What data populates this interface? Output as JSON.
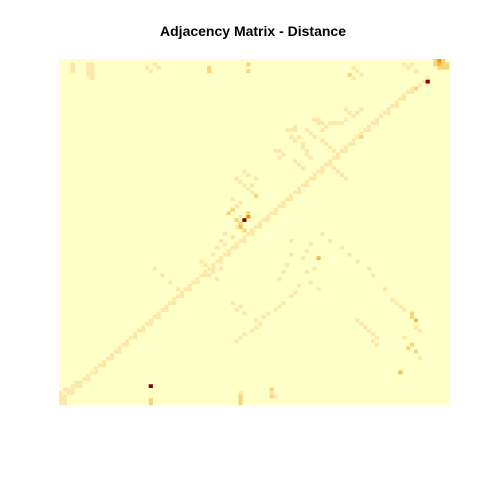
{
  "chart_data": {
    "type": "heatmap",
    "title": "Adjacency Matrix - Distance",
    "xlabel": "",
    "ylabel": "",
    "n": 100,
    "axes_shown": false,
    "grid": false,
    "legend": "none",
    "colors": {
      "background": "#FFFFC8",
      "scale": [
        "#FFFFC8",
        "#FCE8A8",
        "#F9D57A",
        "#F3BE45",
        "#E89A10",
        "#C85A00",
        "#8B0000"
      ]
    },
    "value_range": [
      0,
      6
    ],
    "cells": [
      [
        0,
        96,
        2
      ],
      [
        0,
        97,
        4
      ],
      [
        0,
        98,
        2
      ],
      [
        1,
        96,
        2
      ],
      [
        1,
        97,
        3
      ],
      [
        1,
        98,
        2
      ],
      [
        1,
        99,
        2
      ],
      [
        2,
        97,
        2
      ],
      [
        2,
        98,
        2
      ],
      [
        2,
        99,
        2
      ],
      [
        2,
        38,
        2
      ],
      [
        3,
        38,
        2
      ],
      [
        3,
        48,
        2
      ],
      [
        1,
        48,
        2
      ],
      [
        4,
        74,
        2
      ],
      [
        5,
        94,
        1
      ],
      [
        6,
        93,
        1
      ],
      [
        7,
        92,
        1
      ],
      [
        8,
        91,
        2
      ],
      [
        6,
        94,
        6
      ],
      [
        8,
        90,
        1
      ],
      [
        9,
        89,
        1
      ],
      [
        9,
        90,
        1
      ],
      [
        10,
        88,
        1
      ],
      [
        11,
        87,
        1
      ],
      [
        11,
        88,
        1
      ],
      [
        12,
        86,
        1
      ],
      [
        13,
        85,
        1
      ],
      [
        13,
        86,
        1
      ],
      [
        14,
        84,
        1
      ],
      [
        15,
        83,
        1
      ],
      [
        15,
        84,
        1
      ],
      [
        16,
        82,
        1
      ],
      [
        17,
        81,
        1
      ],
      [
        18,
        80,
        1
      ],
      [
        18,
        81,
        1
      ],
      [
        19,
        79,
        1
      ],
      [
        20,
        78,
        1
      ],
      [
        20,
        79,
        1
      ],
      [
        21,
        77,
        1
      ],
      [
        22,
        76,
        1
      ],
      [
        22,
        77,
        2
      ],
      [
        23,
        75,
        1
      ],
      [
        24,
        74,
        1
      ],
      [
        24,
        75,
        1
      ],
      [
        25,
        73,
        1
      ],
      [
        26,
        72,
        1
      ],
      [
        26,
        73,
        1
      ],
      [
        27,
        71,
        1
      ],
      [
        28,
        70,
        1
      ],
      [
        28,
        71,
        1
      ],
      [
        29,
        69,
        1
      ],
      [
        30,
        68,
        1
      ],
      [
        30,
        69,
        1
      ],
      [
        31,
        67,
        1
      ],
      [
        32,
        66,
        1
      ],
      [
        32,
        67,
        1
      ],
      [
        33,
        65,
        1
      ],
      [
        34,
        64,
        1
      ],
      [
        34,
        65,
        1
      ],
      [
        35,
        63,
        1
      ],
      [
        36,
        62,
        1
      ],
      [
        36,
        63,
        1
      ],
      [
        37,
        61,
        1
      ],
      [
        38,
        60,
        1
      ],
      [
        38,
        61,
        1
      ],
      [
        39,
        59,
        1
      ],
      [
        40,
        58,
        1
      ],
      [
        40,
        59,
        1
      ],
      [
        41,
        57,
        1
      ],
      [
        42,
        56,
        1
      ],
      [
        42,
        57,
        1
      ],
      [
        43,
        55,
        1
      ],
      [
        44,
        54,
        1
      ],
      [
        44,
        55,
        1
      ],
      [
        45,
        53,
        1
      ],
      [
        46,
        52,
        1
      ],
      [
        46,
        53,
        1
      ],
      [
        47,
        51,
        1
      ],
      [
        48,
        50,
        1
      ],
      [
        48,
        51,
        1
      ],
      [
        49,
        49,
        1
      ],
      [
        50,
        48,
        1
      ],
      [
        50,
        49,
        1
      ],
      [
        51,
        47,
        1
      ],
      [
        52,
        46,
        1
      ],
      [
        52,
        47,
        1
      ],
      [
        53,
        45,
        1
      ],
      [
        54,
        44,
        1
      ],
      [
        54,
        45,
        1
      ],
      [
        55,
        43,
        1
      ],
      [
        56,
        42,
        1
      ],
      [
        56,
        43,
        1
      ],
      [
        57,
        41,
        1
      ],
      [
        58,
        40,
        1
      ],
      [
        58,
        41,
        1
      ],
      [
        59,
        39,
        1
      ],
      [
        60,
        38,
        1
      ],
      [
        60,
        39,
        1
      ],
      [
        61,
        37,
        1
      ],
      [
        62,
        36,
        1
      ],
      [
        62,
        37,
        1
      ],
      [
        63,
        35,
        1
      ],
      [
        64,
        34,
        1
      ],
      [
        64,
        35,
        1
      ],
      [
        65,
        33,
        1
      ],
      [
        66,
        32,
        1
      ],
      [
        66,
        33,
        1
      ],
      [
        67,
        31,
        1
      ],
      [
        68,
        30,
        1
      ],
      [
        68,
        31,
        1
      ],
      [
        69,
        29,
        1
      ],
      [
        70,
        28,
        1
      ],
      [
        70,
        29,
        1
      ],
      [
        71,
        27,
        1
      ],
      [
        72,
        26,
        1
      ],
      [
        72,
        27,
        1
      ],
      [
        73,
        25,
        1
      ],
      [
        74,
        24,
        1
      ],
      [
        74,
        25,
        1
      ],
      [
        75,
        23,
        1
      ],
      [
        76,
        22,
        1
      ],
      [
        76,
        23,
        1
      ],
      [
        77,
        21,
        1
      ],
      [
        78,
        20,
        1
      ],
      [
        78,
        21,
        1
      ],
      [
        79,
        19,
        1
      ],
      [
        80,
        18,
        1
      ],
      [
        80,
        19,
        1
      ],
      [
        81,
        17,
        1
      ],
      [
        82,
        16,
        1
      ],
      [
        82,
        17,
        1
      ],
      [
        83,
        15,
        1
      ],
      [
        84,
        14,
        1
      ],
      [
        84,
        15,
        1
      ],
      [
        85,
        13,
        1
      ],
      [
        86,
        12,
        1
      ],
      [
        86,
        13,
        1
      ],
      [
        87,
        11,
        1
      ],
      [
        88,
        10,
        1
      ],
      [
        88,
        11,
        1
      ],
      [
        89,
        9,
        1
      ],
      [
        90,
        8,
        1
      ],
      [
        90,
        9,
        1
      ],
      [
        91,
        7,
        1
      ],
      [
        92,
        6,
        1
      ],
      [
        92,
        7,
        1
      ],
      [
        93,
        5,
        1
      ],
      [
        94,
        4,
        1
      ],
      [
        94,
        5,
        1
      ],
      [
        95,
        3,
        1
      ],
      [
        96,
        2,
        1
      ],
      [
        96,
        3,
        1
      ],
      [
        97,
        1,
        1
      ],
      [
        98,
        1,
        1
      ],
      [
        98,
        0,
        1
      ],
      [
        99,
        0,
        1
      ],
      [
        99,
        1,
        1
      ],
      [
        97,
        0,
        1
      ],
      [
        96,
        0,
        1
      ],
      [
        95,
        2,
        1
      ],
      [
        95,
        1,
        1
      ],
      [
        94,
        3,
        1
      ],
      [
        93,
        4,
        1
      ],
      [
        90,
        87,
        3
      ],
      [
        86,
        92,
        1
      ],
      [
        84,
        91,
        2
      ],
      [
        83,
        89,
        2
      ],
      [
        82,
        90,
        2
      ],
      [
        80,
        88,
        1
      ],
      [
        78,
        92,
        1
      ],
      [
        77,
        91,
        1
      ],
      [
        75,
        91,
        3
      ],
      [
        74,
        90,
        2
      ],
      [
        73,
        90,
        2
      ],
      [
        72,
        88,
        1
      ],
      [
        71,
        87,
        1
      ],
      [
        70,
        86,
        1
      ],
      [
        69,
        85,
        1
      ],
      [
        66,
        83,
        1
      ],
      [
        62,
        80,
        1
      ],
      [
        60,
        79,
        1
      ],
      [
        58,
        76,
        1
      ],
      [
        56,
        74,
        1
      ],
      [
        54,
        72,
        1
      ],
      [
        52,
        69,
        1
      ],
      [
        50,
        67,
        1
      ],
      [
        53,
        64,
        1
      ],
      [
        55,
        63,
        1
      ],
      [
        57,
        62,
        1
      ],
      [
        52,
        59,
        1
      ],
      [
        59,
        58,
        1
      ],
      [
        61,
        57,
        1
      ],
      [
        63,
        56,
        1
      ],
      [
        56,
        59,
        1
      ],
      [
        57,
        66,
        3
      ],
      [
        60,
        65,
        1
      ],
      [
        61,
        63,
        1
      ],
      [
        64,
        64,
        1
      ],
      [
        65,
        61,
        1
      ],
      [
        66,
        66,
        1
      ],
      [
        67,
        60,
        1
      ],
      [
        68,
        59,
        1
      ],
      [
        70,
        57,
        1
      ],
      [
        71,
        56,
        1
      ],
      [
        72,
        55,
        1
      ],
      [
        73,
        53,
        1
      ],
      [
        74,
        52,
        1
      ],
      [
        75,
        50,
        1
      ],
      [
        76,
        51,
        1
      ],
      [
        77,
        50,
        1
      ],
      [
        78,
        49,
        1
      ],
      [
        79,
        47,
        1
      ],
      [
        80,
        46,
        1
      ],
      [
        81,
        45,
        1
      ],
      [
        46,
        47,
        6
      ],
      [
        45,
        48,
        4
      ],
      [
        46,
        45,
        2
      ],
      [
        47,
        46,
        2
      ],
      [
        44,
        48,
        2
      ],
      [
        45,
        46,
        1
      ],
      [
        44,
        43,
        2
      ],
      [
        43,
        44,
        2
      ],
      [
        42,
        45,
        1
      ],
      [
        40,
        44,
        1
      ],
      [
        41,
        46,
        1
      ],
      [
        48,
        46,
        3
      ],
      [
        49,
        47,
        2
      ],
      [
        48,
        45,
        1
      ],
      [
        39,
        50,
        2
      ],
      [
        38,
        49,
        1
      ],
      [
        37,
        48,
        1
      ],
      [
        36,
        47,
        1
      ],
      [
        35,
        46,
        1
      ],
      [
        36,
        49,
        1
      ],
      [
        34,
        45,
        1
      ],
      [
        33,
        48,
        1
      ],
      [
        32,
        47,
        1
      ],
      [
        34,
        50,
        1
      ],
      [
        72,
        45,
        1
      ],
      [
        71,
        46,
        1
      ],
      [
        70,
        44,
        1
      ],
      [
        73,
        47,
        1
      ],
      [
        50,
        42,
        1
      ],
      [
        52,
        41,
        1
      ],
      [
        54,
        40,
        1
      ],
      [
        56,
        39,
        1
      ],
      [
        51,
        44,
        1
      ],
      [
        53,
        42,
        1
      ],
      [
        63,
        40,
        1
      ],
      [
        62,
        38,
        1
      ],
      [
        61,
        39,
        1
      ],
      [
        60,
        41,
        1
      ],
      [
        59,
        37,
        1
      ],
      [
        58,
        36,
        1
      ],
      [
        94,
        23,
        6
      ],
      [
        98,
        23,
        2
      ],
      [
        99,
        23,
        2
      ],
      [
        96,
        46,
        1
      ],
      [
        97,
        46,
        2
      ],
      [
        98,
        46,
        2
      ],
      [
        99,
        46,
        2
      ],
      [
        95,
        54,
        2
      ],
      [
        96,
        54,
        1
      ],
      [
        97,
        54,
        2
      ],
      [
        97,
        55,
        1
      ],
      [
        1,
        7,
        1
      ],
      [
        2,
        7,
        1
      ],
      [
        3,
        7,
        1
      ],
      [
        4,
        7,
        1
      ],
      [
        1,
        8,
        1
      ],
      [
        2,
        8,
        1
      ],
      [
        3,
        8,
        1
      ],
      [
        4,
        8,
        1
      ],
      [
        5,
        8,
        1
      ],
      [
        1,
        3,
        1
      ],
      [
        2,
        3,
        1
      ],
      [
        3,
        3,
        1
      ],
      [
        17,
        65,
        1
      ],
      [
        18,
        66,
        1
      ],
      [
        17,
        66,
        1
      ],
      [
        18,
        67,
        1
      ],
      [
        19,
        68,
        1
      ],
      [
        14,
        73,
        1
      ],
      [
        15,
        74,
        1
      ],
      [
        16,
        75,
        1
      ],
      [
        15,
        76,
        1
      ],
      [
        14,
        77,
        1
      ],
      [
        20,
        63,
        1
      ],
      [
        21,
        64,
        1
      ],
      [
        22,
        65,
        1
      ],
      [
        20,
        67,
        1
      ],
      [
        20,
        58,
        1
      ],
      [
        20,
        59,
        1
      ],
      [
        20,
        60,
        1
      ],
      [
        19,
        60,
        1
      ],
      [
        18,
        69,
        1
      ],
      [
        18,
        70,
        1
      ],
      [
        18,
        71,
        1
      ],
      [
        18,
        72,
        1
      ],
      [
        17,
        73,
        1
      ],
      [
        22,
        59,
        1
      ],
      [
        23,
        60,
        1
      ],
      [
        22,
        61,
        1
      ],
      [
        24,
        62,
        1
      ],
      [
        25,
        62,
        1
      ],
      [
        26,
        63,
        1
      ],
      [
        27,
        63,
        1
      ],
      [
        28,
        64,
        1
      ],
      [
        29,
        60,
        1
      ],
      [
        30,
        61,
        1
      ],
      [
        31,
        62,
        1
      ],
      [
        23,
        67,
        1
      ],
      [
        24,
        68,
        1
      ],
      [
        25,
        69,
        1
      ],
      [
        26,
        70,
        1
      ],
      [
        26,
        55,
        1
      ],
      [
        26,
        56,
        1
      ],
      [
        27,
        57,
        1
      ],
      [
        28,
        56,
        1
      ],
      [
        31,
        70,
        1
      ],
      [
        32,
        71,
        1
      ],
      [
        33,
        72,
        1
      ],
      [
        34,
        73,
        1
      ],
      [
        2,
        75,
        1
      ],
      [
        3,
        76,
        1
      ],
      [
        4,
        77,
        1
      ],
      [
        5,
        75,
        1
      ],
      [
        1,
        88,
        1
      ],
      [
        2,
        89,
        1
      ],
      [
        1,
        90,
        1
      ],
      [
        3,
        91,
        1
      ],
      [
        2,
        22,
        1
      ],
      [
        3,
        23,
        1
      ],
      [
        1,
        24,
        1
      ],
      [
        2,
        25,
        1
      ],
      [
        60,
        24,
        1
      ],
      [
        62,
        26,
        1
      ],
      [
        64,
        28,
        1
      ],
      [
        66,
        30,
        1
      ],
      [
        75,
        76,
        1
      ],
      [
        76,
        77,
        1
      ],
      [
        77,
        78,
        1
      ],
      [
        78,
        79,
        1
      ],
      [
        79,
        80,
        1
      ],
      [
        80,
        81,
        1
      ],
      [
        81,
        80,
        1
      ],
      [
        82,
        81,
        1
      ]
    ]
  }
}
